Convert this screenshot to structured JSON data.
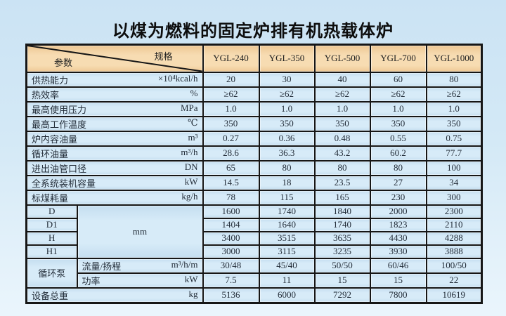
{
  "page_title": "以煤为燃料的固定炉排有机热载体炉",
  "colors": {
    "background_top": "#cbe3f4",
    "background_bottom": "#eaf5fc",
    "header_cell": "#f6d9ae",
    "data_cell": "#d5eaf7",
    "border": "#161616",
    "title_text": "#0d0d0d"
  },
  "table": {
    "corner": {
      "top_right": "规格",
      "bottom_left": "参数"
    },
    "models": [
      "YGL-240",
      "YGL-350",
      "YGL-500",
      "YGL-700",
      "YGL-1000"
    ],
    "rows": [
      {
        "label": "供热能力",
        "unit": "×10⁴kcal/h",
        "values": [
          "20",
          "30",
          "40",
          "60",
          "80"
        ]
      },
      {
        "label": "热效率",
        "unit": "%",
        "values": [
          "≥62",
          "≥62",
          "≥62",
          "≥62",
          "≥62"
        ]
      },
      {
        "label": "最高使用压力",
        "unit": "MPa",
        "values": [
          "1.0",
          "1.0",
          "1.0",
          "1.0",
          "1.0"
        ]
      },
      {
        "label": "最高工作温度",
        "unit": "℃",
        "values": [
          "350",
          "350",
          "350",
          "350",
          "350"
        ]
      },
      {
        "label": "炉内容油量",
        "unit": "m³",
        "values": [
          "0.27",
          "0.36",
          "0.48",
          "0.55",
          "0.75"
        ]
      },
      {
        "label": "循环油量",
        "unit": "m³/h",
        "values": [
          "28.6",
          "36.3",
          "43.2",
          "60.2",
          "77.7"
        ]
      },
      {
        "label": "进出油管口径",
        "unit": "DN",
        "values": [
          "65",
          "80",
          "80",
          "80",
          "100"
        ]
      },
      {
        "label": "全系统装机容量",
        "unit": "kW",
        "values": [
          "14.5",
          "18",
          "23.5",
          "27",
          "34"
        ]
      },
      {
        "label": "标煤耗量",
        "unit": "kg/h",
        "values": [
          "78",
          "115",
          "165",
          "230",
          "300"
        ]
      }
    ],
    "dimensions": {
      "unit": "mm",
      "rows": [
        {
          "label": "D",
          "values": [
            "1600",
            "1740",
            "1840",
            "2000",
            "2300"
          ]
        },
        {
          "label": "D1",
          "values": [
            "1404",
            "1640",
            "1740",
            "1823",
            "2110"
          ]
        },
        {
          "label": "H",
          "values": [
            "3400",
            "3515",
            "3635",
            "4430",
            "4288"
          ]
        },
        {
          "label": "H1",
          "values": [
            "3000",
            "3115",
            "3235",
            "3930",
            "3888"
          ]
        }
      ]
    },
    "pump": {
      "label": "循环泵",
      "rows": [
        {
          "label": "流量/扬程",
          "unit": "m³/h/m",
          "values": [
            "30/48",
            "45/40",
            "50/50",
            "60/46",
            "100/50"
          ]
        },
        {
          "label": "功率",
          "unit": "kW",
          "values": [
            "7.5",
            "11",
            "15",
            "15",
            "22"
          ]
        }
      ]
    },
    "total": {
      "label": "设备总重",
      "unit": "kg",
      "values": [
        "5136",
        "6000",
        "7292",
        "7800",
        "10619"
      ]
    }
  }
}
